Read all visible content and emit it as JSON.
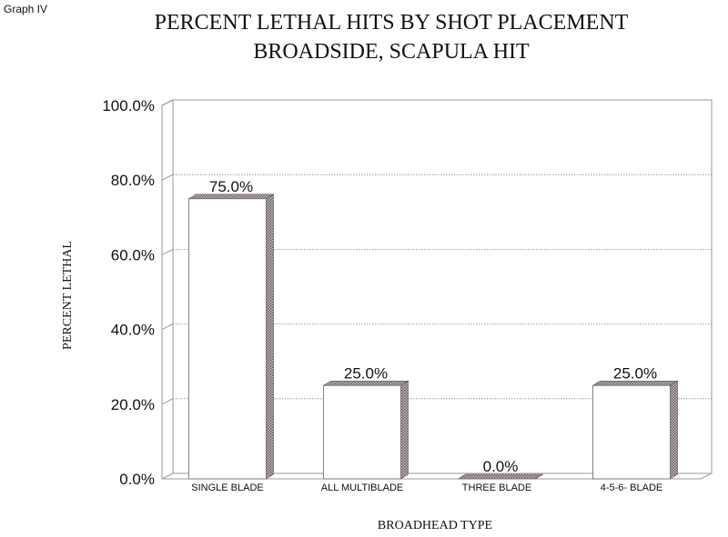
{
  "corner_label": "Graph IV",
  "chart_data": {
    "type": "bar",
    "style": "3d",
    "title": "PERCENT LETHAL HITS BY SHOT PLACEMENT",
    "subtitle": "BROADSIDE, SCAPULA HIT",
    "xlabel": "BROADHEAD TYPE",
    "ylabel": "PERCENT LETHAL",
    "categories": [
      "SINGLE BLADE",
      "ALL MULTIBLADE",
      "THREE BLADE",
      "4-5-6- BLADE"
    ],
    "values": [
      75.0,
      25.0,
      0.0,
      25.0
    ],
    "data_labels": [
      "75.0%",
      "25.0%",
      "0.0%",
      "25.0%"
    ],
    "yticks": [
      "0.0%",
      "20.0%",
      "40.0%",
      "60.0%",
      "80.0%",
      "100.0%"
    ],
    "ylim": [
      0,
      100
    ],
    "grid": true,
    "legend": "none",
    "colors": {
      "bar_face": "#ffffff",
      "bar_side": "#6a5a60",
      "grid": "#888888"
    }
  }
}
